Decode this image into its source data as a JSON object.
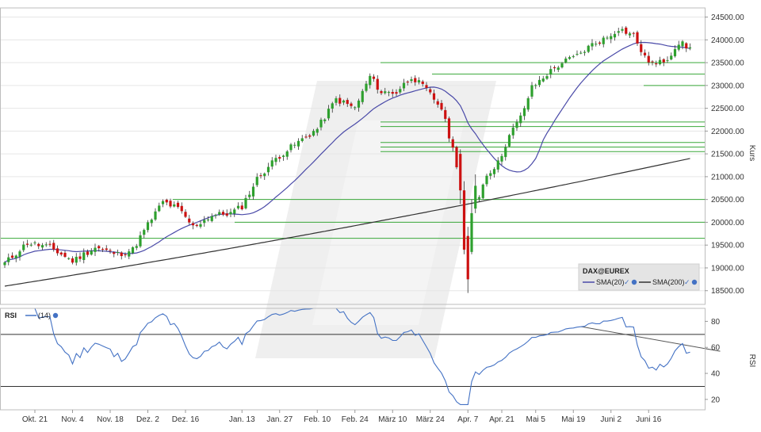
{
  "colors": {
    "up": "#2ea02e",
    "down": "#cc1111",
    "sma20": "#4a4aa8",
    "sma200": "#333333",
    "rsi": "#4472c4",
    "hline": "#3aa83a",
    "grid": "#e6e6e6",
    "axis_text": "#333333",
    "watermark": "#dcdcdc"
  },
  "chart_data": [
    {
      "type": "candlestick",
      "panel": "price",
      "ylabel": "Kurs",
      "ylim": [
        18200,
        24700
      ],
      "yticks": [
        "18500.00",
        "19000.00",
        "19500.00",
        "20000.00",
        "20500.00",
        "21000.00",
        "21500.00",
        "22000.00",
        "22500.00",
        "23000.00",
        "23500.00",
        "24000.00",
        "24500.00"
      ],
      "x_labels": [
        {
          "label": "Okt. 21",
          "idx": 8
        },
        {
          "label": "Nov. 4",
          "idx": 18
        },
        {
          "label": "Nov. 18",
          "idx": 28
        },
        {
          "label": "Dez. 2",
          "idx": 38
        },
        {
          "label": "Dez. 16",
          "idx": 48
        },
        {
          "label": "Jan. 13",
          "idx": 63
        },
        {
          "label": "Jan. 27",
          "idx": 73
        },
        {
          "label": "Feb. 10",
          "idx": 83
        },
        {
          "label": "Feb. 24",
          "idx": 93
        },
        {
          "label": "März 10",
          "idx": 103
        },
        {
          "label": "März 24",
          "idx": 113
        },
        {
          "label": "Apr. 7",
          "idx": 123
        },
        {
          "label": "Apr. 21",
          "idx": 132
        },
        {
          "label": "Mai 5",
          "idx": 141
        },
        {
          "label": "Mai 19",
          "idx": 151
        },
        {
          "label": "Juni 2",
          "idx": 161
        },
        {
          "label": "Juni 16",
          "idx": 171
        }
      ],
      "close_anchors": [
        [
          0,
          19100
        ],
        [
          6,
          19550
        ],
        [
          12,
          19450
        ],
        [
          18,
          19150
        ],
        [
          24,
          19450
        ],
        [
          30,
          19300
        ],
        [
          34,
          19400
        ],
        [
          38,
          19950
        ],
        [
          42,
          20450
        ],
        [
          46,
          20300
        ],
        [
          50,
          19900
        ],
        [
          55,
          20150
        ],
        [
          60,
          20200
        ],
        [
          63,
          20350
        ],
        [
          67,
          20950
        ],
        [
          72,
          21400
        ],
        [
          77,
          21700
        ],
        [
          83,
          22050
        ],
        [
          88,
          22700
        ],
        [
          93,
          22500
        ],
        [
          97,
          23200
        ],
        [
          100,
          22850
        ],
        [
          104,
          22850
        ],
        [
          108,
          23200
        ],
        [
          112,
          22900
        ],
        [
          116,
          22500
        ],
        [
          119,
          21600
        ],
        [
          121,
          20950
        ],
        [
          123,
          19800
        ],
        [
          124,
          20400
        ],
        [
          126,
          20600
        ],
        [
          128,
          21050
        ],
        [
          131,
          21300
        ],
        [
          134,
          21900
        ],
        [
          137,
          22300
        ],
        [
          140,
          22950
        ],
        [
          144,
          23250
        ],
        [
          148,
          23500
        ],
        [
          152,
          23650
        ],
        [
          156,
          23900
        ],
        [
          160,
          24050
        ],
        [
          163,
          24250
        ],
        [
          167,
          24100
        ],
        [
          170,
          23600
        ],
        [
          173,
          23450
        ],
        [
          176,
          23600
        ],
        [
          179,
          23950
        ],
        [
          182,
          23800
        ]
      ],
      "special_bars": [
        {
          "idx": 121,
          "open": 21500,
          "close": 20700,
          "high": 21600,
          "low": 20400
        },
        {
          "idx": 122,
          "open": 20700,
          "close": 19400,
          "high": 20900,
          "low": 19300
        },
        {
          "idx": 123,
          "open": 19700,
          "close": 18750,
          "high": 19900,
          "low": 18450
        },
        {
          "idx": 124,
          "open": 19350,
          "close": 20200,
          "high": 20500,
          "low": 19300
        },
        {
          "idx": 125,
          "open": 20300,
          "close": 20800,
          "high": 21050,
          "low": 20200
        }
      ],
      "horizontal_levels": [
        23500,
        23250,
        23000,
        22200,
        22100,
        21750,
        21650,
        21550,
        20500,
        20000,
        19650
      ],
      "series": [
        {
          "name": "SMA(20)",
          "indicator": "sma",
          "period": 20
        },
        {
          "name": "SMA(200)",
          "indicator": "sma",
          "period": 200,
          "start": 18600,
          "end": 21400
        }
      ],
      "legend": {
        "title": "DAX@EUREX",
        "placement": "bottom-right"
      },
      "n_bars": 183
    },
    {
      "type": "line",
      "panel": "rsi",
      "title": "RSI",
      "ylabel": "RSI",
      "series": [
        {
          "name": "(14)"
        }
      ],
      "ylim": [
        12,
        90
      ],
      "yticks": [
        "20",
        "40",
        "60",
        "80"
      ],
      "reference_lines": [
        30,
        70
      ],
      "trendline": {
        "from": [
          153,
          76
        ],
        "to": [
          190,
          57
        ]
      }
    }
  ],
  "price_panel": {
    "legend_title": "DAX@EUREX",
    "legend_sma20": "SMA(20)",
    "legend_sma200": "SMA(200)",
    "ylabel": "Kurs"
  },
  "rsi_panel": {
    "title": "RSI",
    "period": "(14)",
    "ylabel": "RSI"
  }
}
